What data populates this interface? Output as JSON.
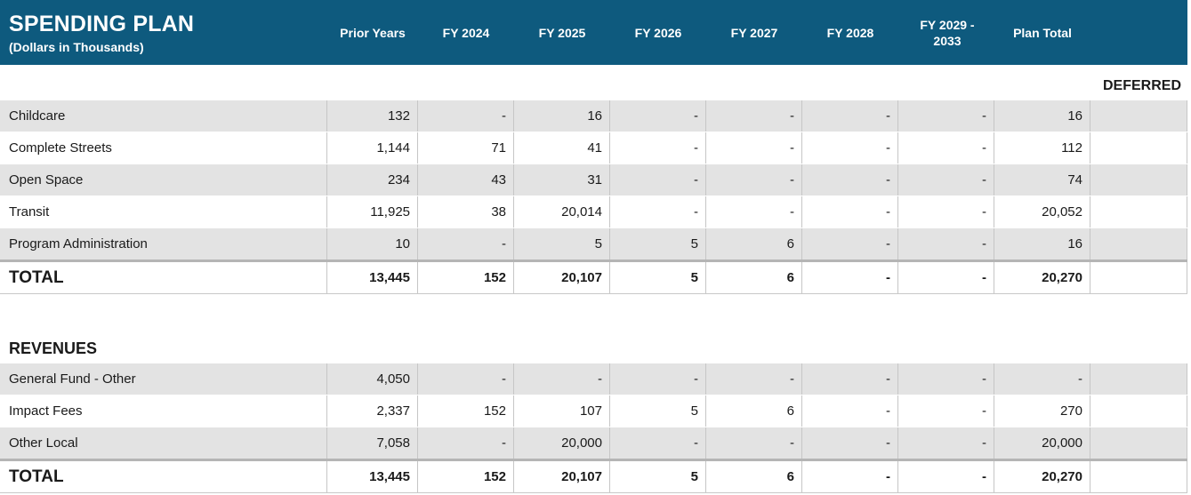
{
  "header": {
    "title": "SPENDING PLAN",
    "subtitle": "(Dollars in Thousands)",
    "columns": [
      "Prior Years",
      "FY 2024",
      "FY 2025",
      "FY 2026",
      "FY 2027",
      "FY 2028",
      "FY 2029 - 2033",
      "Plan Total"
    ]
  },
  "deferred_label": "DEFERRED",
  "spending": {
    "rows": [
      {
        "label": "Childcare",
        "values": [
          "132",
          "-",
          "16",
          "-",
          "-",
          "-",
          "-",
          "16",
          ""
        ]
      },
      {
        "label": "Complete Streets",
        "values": [
          "1,144",
          "71",
          "41",
          "-",
          "-",
          "-",
          "-",
          "112",
          ""
        ]
      },
      {
        "label": "Open Space",
        "values": [
          "234",
          "43",
          "31",
          "-",
          "-",
          "-",
          "-",
          "74",
          ""
        ]
      },
      {
        "label": "Transit",
        "values": [
          "11,925",
          "38",
          "20,014",
          "-",
          "-",
          "-",
          "-",
          "20,052",
          ""
        ]
      },
      {
        "label": "Program Administration",
        "values": [
          "10",
          "-",
          "5",
          "5",
          "6",
          "-",
          "-",
          "16",
          ""
        ]
      }
    ],
    "total": {
      "label": "TOTAL",
      "values": [
        "13,445",
        "152",
        "20,107",
        "5",
        "6",
        "-",
        "-",
        "20,270",
        ""
      ]
    }
  },
  "revenues": {
    "title": "REVENUES",
    "rows": [
      {
        "label": "General Fund - Other",
        "values": [
          "4,050",
          "-",
          "-",
          "-",
          "-",
          "-",
          "-",
          "-",
          ""
        ]
      },
      {
        "label": "Impact Fees",
        "values": [
          "2,337",
          "152",
          "107",
          "5",
          "6",
          "-",
          "-",
          "270",
          ""
        ]
      },
      {
        "label": "Other Local",
        "values": [
          "7,058",
          "-",
          "20,000",
          "-",
          "-",
          "-",
          "-",
          "20,000",
          ""
        ]
      }
    ],
    "total": {
      "label": "TOTAL",
      "values": [
        "13,445",
        "152",
        "20,107",
        "5",
        "6",
        "-",
        "-",
        "20,270",
        ""
      ]
    }
  }
}
